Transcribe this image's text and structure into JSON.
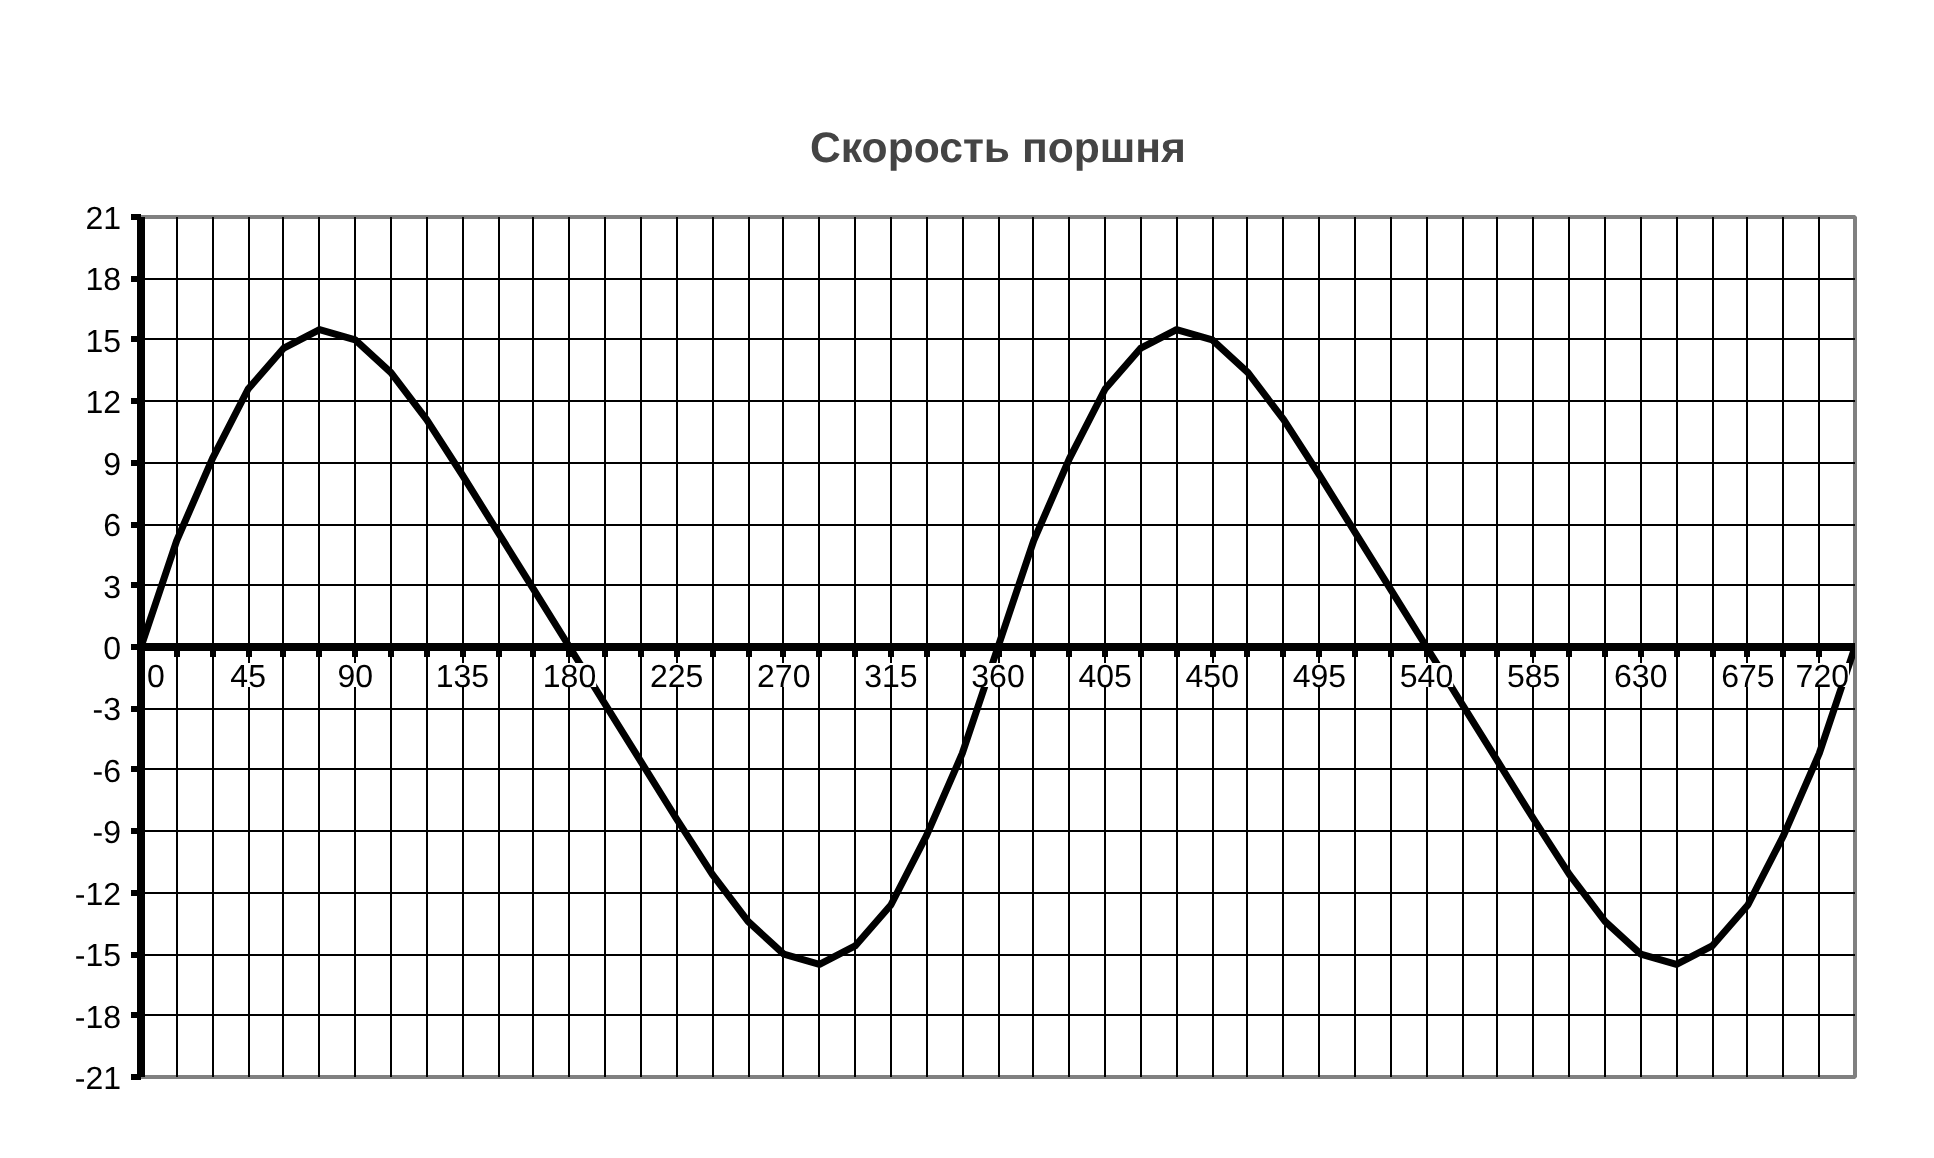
{
  "chart_data": {
    "type": "line",
    "title": "Скорость поршня",
    "x": [
      0,
      15,
      30,
      45,
      60,
      75,
      90,
      105,
      120,
      135,
      150,
      165,
      180,
      195,
      210,
      225,
      240,
      255,
      270,
      285,
      300,
      315,
      330,
      345,
      360,
      375,
      390,
      405,
      420,
      435,
      450,
      465,
      480,
      495,
      510,
      525,
      540,
      555,
      570,
      585,
      600,
      615,
      630,
      645,
      660,
      675,
      690,
      705,
      720
    ],
    "series": [
      {
        "color": "#000000",
        "values": [
          0,
          5.2,
          9.2,
          12.6,
          14.6,
          15.5,
          15.0,
          13.4,
          11.1,
          8.4,
          5.6,
          2.8,
          0,
          -2.8,
          -5.6,
          -8.4,
          -11.1,
          -13.4,
          -15.0,
          -15.5,
          -14.6,
          -12.6,
          -9.2,
          -5.2,
          0,
          5.2,
          9.2,
          12.6,
          14.6,
          15.5,
          15.0,
          13.4,
          11.1,
          8.4,
          5.6,
          2.8,
          0,
          -2.8,
          -5.6,
          -8.4,
          -11.1,
          -13.4,
          -15.0,
          -15.5,
          -14.6,
          -12.6,
          -9.2,
          -5.2,
          0
        ]
      }
    ],
    "xlim": [
      0,
      720
    ],
    "ylim": [
      -21,
      21
    ],
    "xticks": [
      0,
      {
        "value": 15,
        "label": null
      },
      {
        "value": 30,
        "label": null
      },
      45,
      {
        "value": 60,
        "label": null
      },
      {
        "value": 75,
        "label": null
      },
      90,
      {
        "value": 105,
        "label": null
      },
      {
        "value": 120,
        "label": null
      },
      135,
      {
        "value": 150,
        "label": null
      },
      {
        "value": 165,
        "label": null
      },
      180,
      {
        "value": 195,
        "label": null
      },
      {
        "value": 210,
        "label": null
      },
      225,
      {
        "value": 240,
        "label": null
      },
      {
        "value": 255,
        "label": null
      },
      270,
      {
        "value": 285,
        "label": null
      },
      {
        "value": 300,
        "label": null
      },
      315,
      {
        "value": 330,
        "label": null
      },
      {
        "value": 345,
        "label": null
      },
      360,
      {
        "value": 375,
        "label": null
      },
      {
        "value": 390,
        "label": null
      },
      405,
      {
        "value": 420,
        "label": null
      },
      {
        "value": 435,
        "label": null
      },
      450,
      {
        "value": 465,
        "label": null
      },
      {
        "value": 480,
        "label": null
      },
      495,
      {
        "value": 510,
        "label": null
      },
      {
        "value": 525,
        "label": null
      },
      540,
      {
        "value": 555,
        "label": null
      },
      {
        "value": 570,
        "label": null
      },
      585,
      {
        "value": 600,
        "label": null
      },
      {
        "value": 615,
        "label": null
      },
      630,
      {
        "value": 645,
        "label": null
      },
      {
        "value": 660,
        "label": null
      },
      675,
      {
        "value": 690,
        "label": null
      },
      {
        "value": 705,
        "label": null
      },
      720
    ],
    "yticks": [
      -21,
      -18,
      -15,
      -12,
      -9,
      -6,
      -3,
      0,
      3,
      6,
      9,
      12,
      15,
      18,
      21
    ],
    "grid": true,
    "marker": "none",
    "line_style": "solid"
  }
}
